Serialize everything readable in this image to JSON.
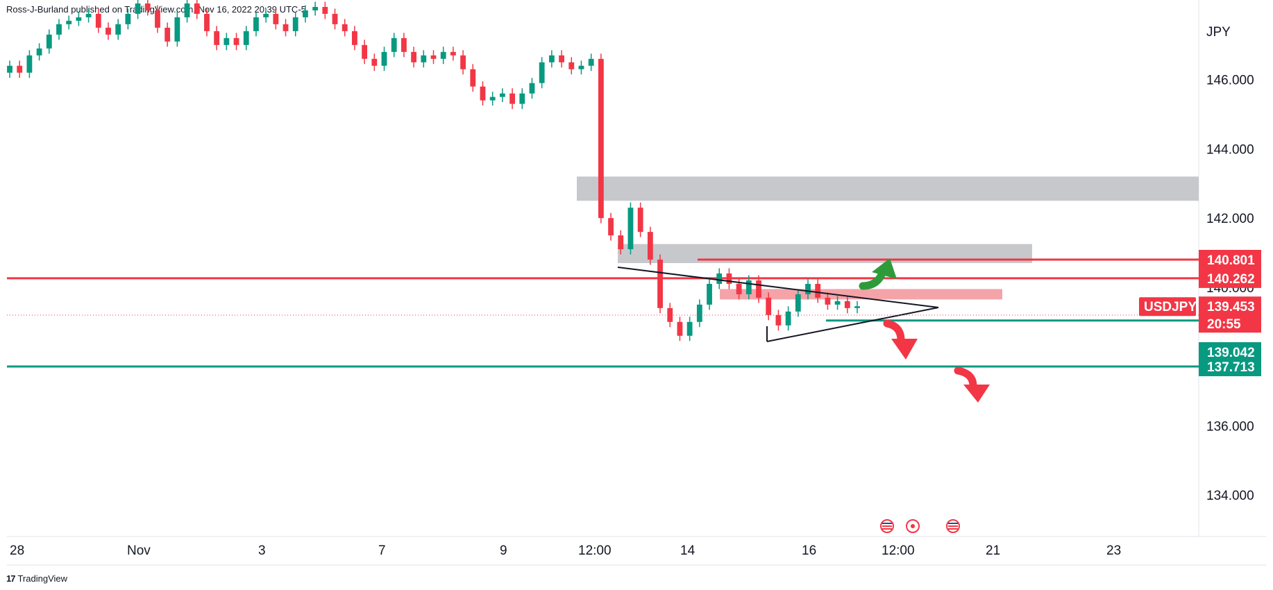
{
  "publisher": "Ross-J-Burland published on TradingView.com, Nov 16, 2022 20:39 UTC-5",
  "footer": {
    "brand": "TradingView",
    "logo_icon": "tradingview-logo-icon"
  },
  "chart_data": {
    "type": "candlestick",
    "symbol": "USDJPY",
    "currency": "JPY",
    "y_range": [
      132.8,
      148.3
    ],
    "y_ticks": [
      "146.000",
      "144.000",
      "142.000",
      "140.000",
      "136.000",
      "134.000"
    ],
    "y_tick_values": [
      146,
      144,
      142,
      140,
      136,
      134
    ],
    "x_ticks": [
      "28",
      "Nov",
      "3",
      "7",
      "9",
      "12:00",
      "14",
      "16",
      "12:00",
      "21",
      "23"
    ],
    "current_price": {
      "symbol": "USDJPY",
      "price": "139.453",
      "countdown": "20:55",
      "value": 139.453
    },
    "horizontal_levels": [
      {
        "label": "140.801",
        "value": 140.801,
        "color": "#f23645"
      },
      {
        "label": "140.262",
        "value": 140.262,
        "color": "#f23645"
      },
      {
        "label": "139.042",
        "value": 139.042,
        "color": "#089981"
      },
      {
        "label": "137.713",
        "value": 137.713,
        "color": "#089981"
      }
    ],
    "zones": [
      {
        "name": "supply-zone-upper",
        "low": 142.5,
        "high": 143.2,
        "color": "#c7c8cc"
      },
      {
        "name": "supply-zone-lower",
        "low": 140.7,
        "high": 141.25,
        "color": "#c7c8cc"
      },
      {
        "name": "resistance-zone",
        "low": 139.65,
        "high": 139.95,
        "color": "#f4a3a9"
      }
    ],
    "colors": {
      "up": "#089981",
      "down": "#f23645"
    },
    "annotations": [
      "triangle pattern",
      "green up arrow",
      "red down arrow",
      "red down arrow"
    ],
    "series": [
      {
        "name": "USDJPY",
        "values": [
          146.4,
          146.2,
          146.7,
          146.9,
          147.3,
          147.6,
          147.7,
          147.8,
          147.9,
          147.5,
          147.3,
          147.6,
          147.9,
          148.2,
          148.0,
          147.5,
          147.1,
          147.8,
          148.2,
          147.9,
          147.4,
          147.0,
          147.2,
          147.0,
          147.4,
          147.8,
          147.9,
          147.6,
          147.4,
          147.8,
          148.0,
          148.1,
          147.9,
          147.6,
          147.4,
          147.0,
          146.6,
          146.4,
          146.8,
          147.2,
          146.8,
          146.5,
          146.7,
          146.6,
          146.8,
          146.7,
          146.3,
          145.8,
          145.4,
          145.5,
          145.6,
          145.3,
          145.6,
          145.9,
          146.5,
          146.7,
          146.5,
          146.3,
          146.4,
          146.6,
          142.0,
          141.5,
          141.1,
          142.3,
          141.6,
          140.8,
          139.4,
          139.0,
          138.6,
          139.0,
          139.5,
          140.1,
          140.4,
          140.1,
          139.8,
          140.2,
          139.7,
          139.2,
          138.9,
          139.3,
          139.8,
          140.1,
          139.7,
          139.5,
          139.6,
          139.4,
          139.453
        ]
      }
    ]
  }
}
